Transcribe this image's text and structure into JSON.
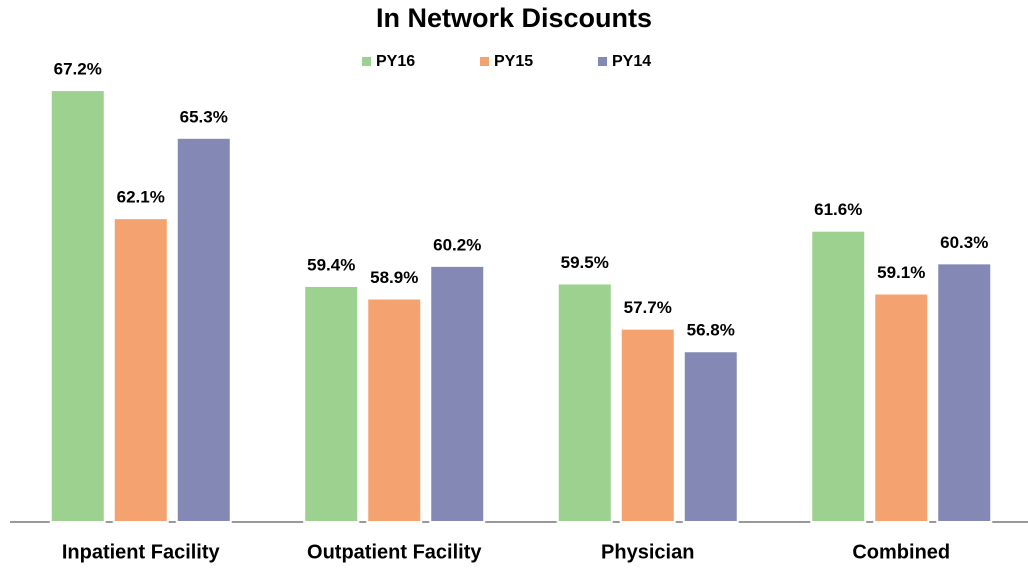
{
  "chart_data": {
    "type": "bar",
    "title": "In Network Discounts",
    "categories": [
      "Inpatient Facility",
      "Outpatient Facility",
      "Physician",
      "Combined"
    ],
    "series": [
      {
        "name": "PY16",
        "color": "#9dd18f",
        "values": [
          67.2,
          59.4,
          59.5,
          61.6
        ],
        "value_labels": [
          "67.2%",
          "59.4%",
          "59.5%",
          "61.6%"
        ]
      },
      {
        "name": "PY15",
        "color": "#f4a26f",
        "values": [
          62.1,
          58.9,
          57.7,
          59.1
        ],
        "value_labels": [
          "62.1%",
          "58.9%",
          "57.7%",
          "59.1%"
        ]
      },
      {
        "name": "PY14",
        "color": "#8388b5",
        "values": [
          65.3,
          60.2,
          56.8,
          60.3
        ],
        "value_labels": [
          "65.3%",
          "60.2%",
          "56.8%",
          "60.3%"
        ]
      }
    ],
    "ylim": [
      50,
      68
    ],
    "legend": "top"
  }
}
